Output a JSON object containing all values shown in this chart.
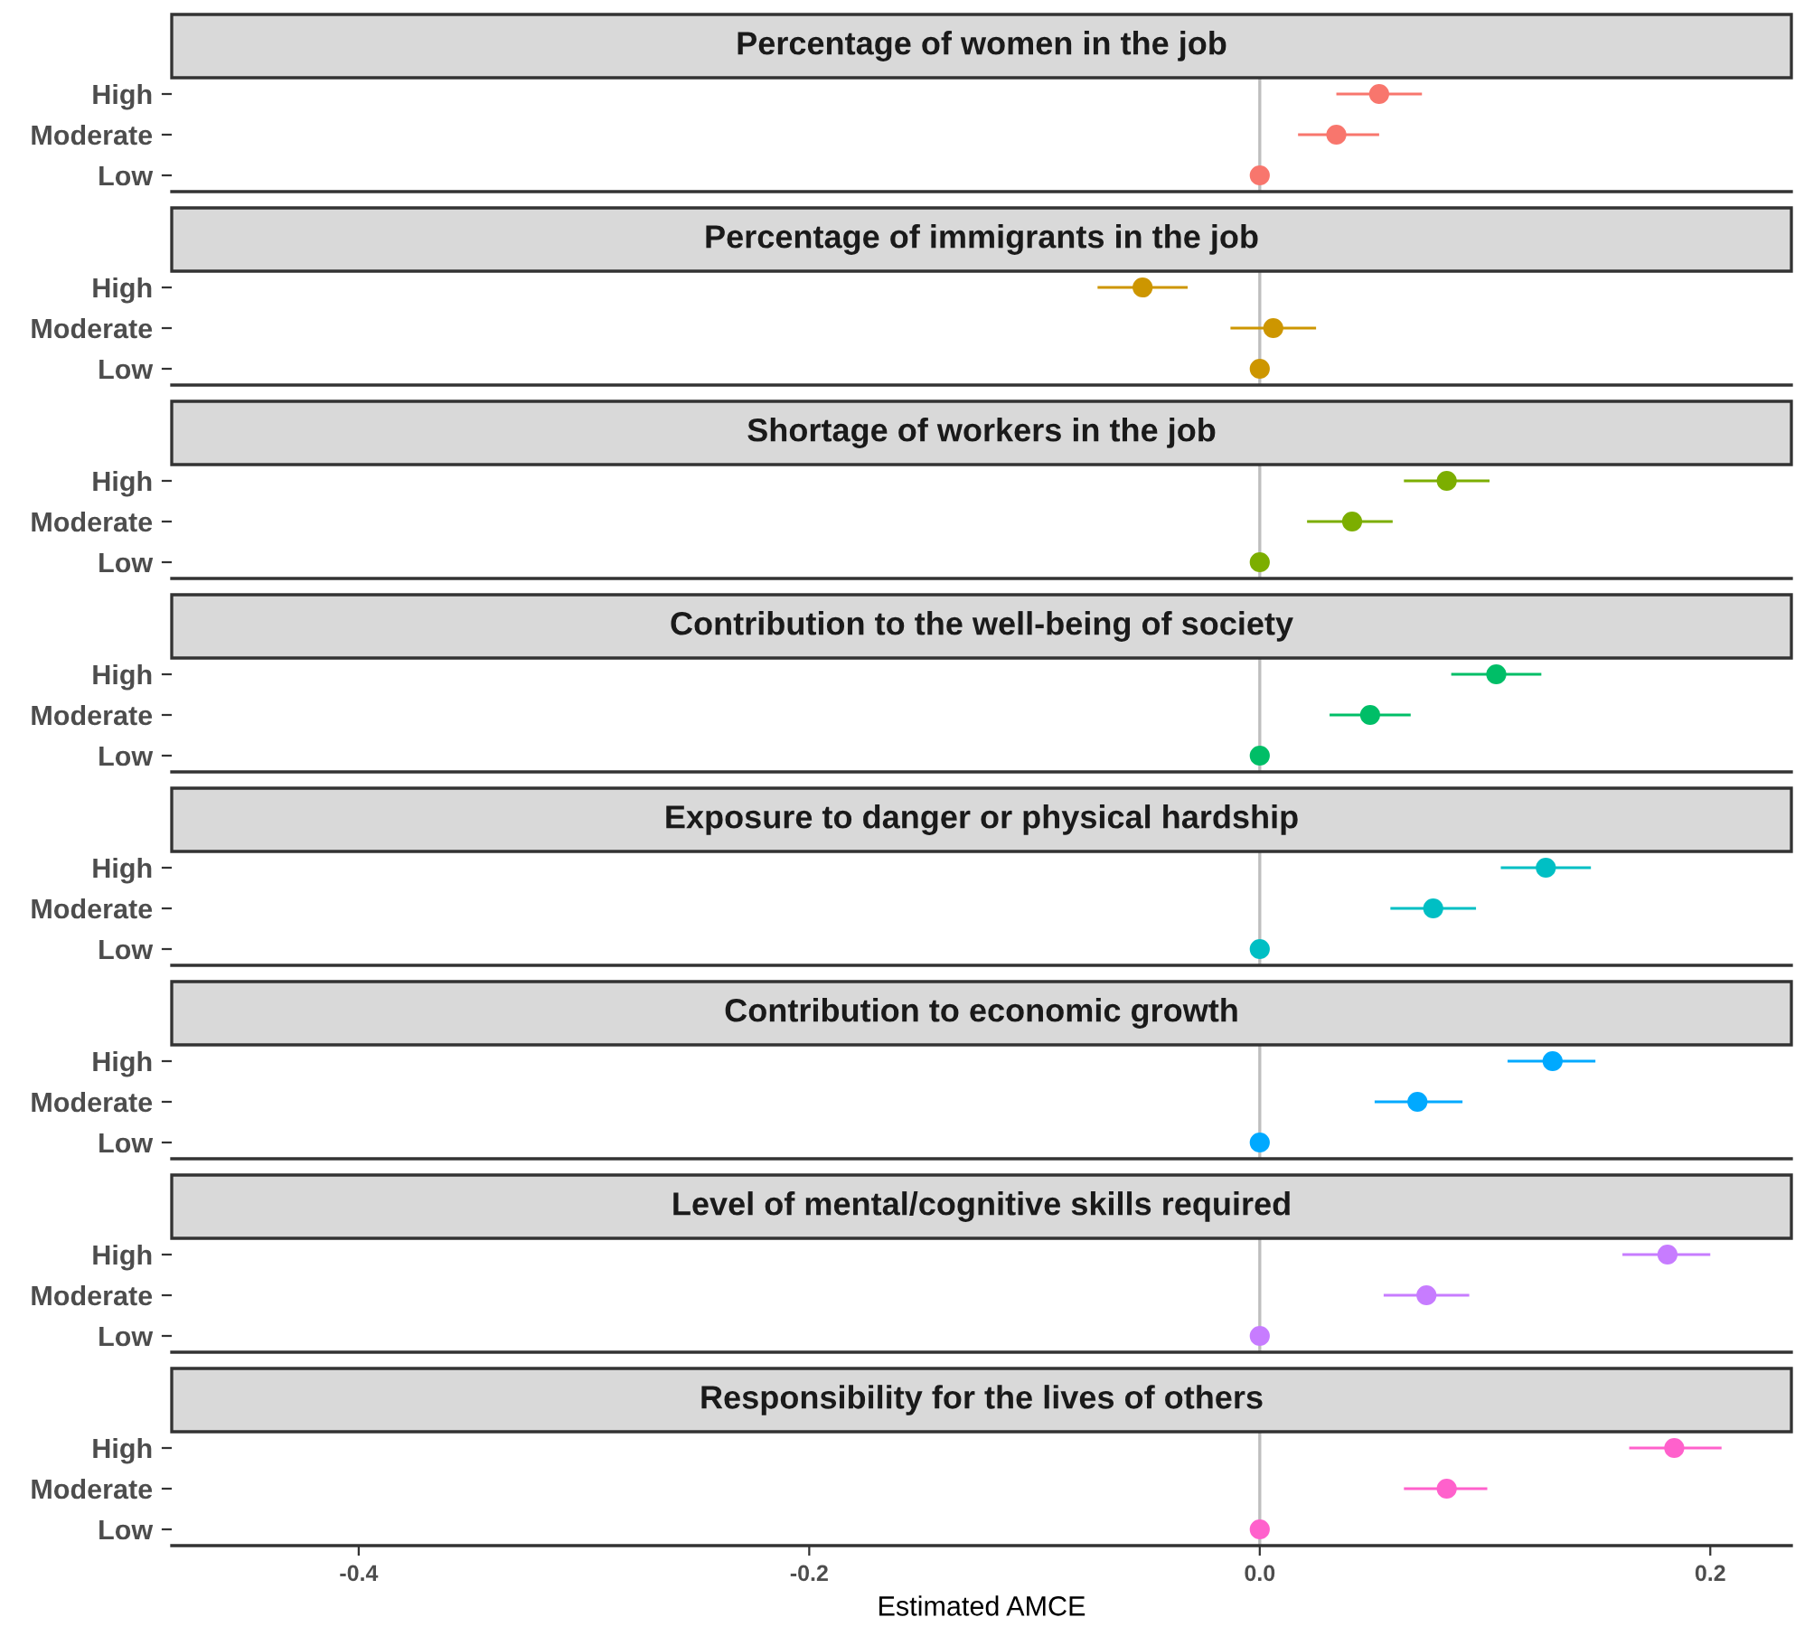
{
  "chart_data": [
    {
      "type": "scatter",
      "orientation": "horizontal",
      "title": "Percentage of women in the job",
      "categories": [
        "High",
        "Moderate",
        "Low"
      ],
      "values": [
        0.053,
        0.034,
        0
      ],
      "errors": [
        [
          0.034,
          0.072
        ],
        [
          0.017,
          0.053
        ],
        null
      ],
      "color": "#f8766d",
      "xlim": [
        -0.483,
        0.236
      ],
      "tick_labels": "y",
      "marker": "circle",
      "grid": false,
      "ref_lines": [
        {
          "axis": "x",
          "value": 0,
          "color": "#bebebe"
        }
      ]
    },
    {
      "type": "scatter",
      "orientation": "horizontal",
      "title": "Percentage of immigrants in the job",
      "categories": [
        "High",
        "Moderate",
        "Low"
      ],
      "values": [
        -0.052,
        0.006,
        0
      ],
      "errors": [
        [
          -0.072,
          -0.032
        ],
        [
          -0.013,
          0.025
        ],
        null
      ],
      "color": "#cd9600",
      "xlim": [
        -0.483,
        0.236
      ],
      "tick_labels": "y",
      "marker": "circle",
      "grid": false,
      "ref_lines": [
        {
          "axis": "x",
          "value": 0,
          "color": "#bebebe"
        }
      ]
    },
    {
      "type": "scatter",
      "orientation": "horizontal",
      "title": "Shortage of workers in the job",
      "categories": [
        "High",
        "Moderate",
        "Low"
      ],
      "values": [
        0.083,
        0.041,
        0
      ],
      "errors": [
        [
          0.064,
          0.102
        ],
        [
          0.021,
          0.059
        ],
        null
      ],
      "color": "#7cae00",
      "xlim": [
        -0.483,
        0.236
      ],
      "tick_labels": "y",
      "marker": "circle",
      "grid": false,
      "ref_lines": [
        {
          "axis": "x",
          "value": 0,
          "color": "#bebebe"
        }
      ]
    },
    {
      "type": "scatter",
      "orientation": "horizontal",
      "title": "Contribution to the well-being of society",
      "categories": [
        "High",
        "Moderate",
        "Low"
      ],
      "values": [
        0.105,
        0.049,
        0
      ],
      "errors": [
        [
          0.085,
          0.125
        ],
        [
          0.031,
          0.067
        ],
        null
      ],
      "color": "#00be67",
      "xlim": [
        -0.483,
        0.236
      ],
      "tick_labels": "y",
      "marker": "circle",
      "grid": false,
      "ref_lines": [
        {
          "axis": "x",
          "value": 0,
          "color": "#bebebe"
        }
      ]
    },
    {
      "type": "scatter",
      "orientation": "horizontal",
      "title": "Exposure to danger or physical hardship",
      "categories": [
        "High",
        "Moderate",
        "Low"
      ],
      "values": [
        0.127,
        0.077,
        0
      ],
      "errors": [
        [
          0.107,
          0.147
        ],
        [
          0.058,
          0.096
        ],
        null
      ],
      "color": "#00bfc4",
      "xlim": [
        -0.483,
        0.236
      ],
      "tick_labels": "y",
      "marker": "circle",
      "grid": false,
      "ref_lines": [
        {
          "axis": "x",
          "value": 0,
          "color": "#bebebe"
        }
      ]
    },
    {
      "type": "scatter",
      "orientation": "horizontal",
      "title": "Contribution to economic growth",
      "categories": [
        "High",
        "Moderate",
        "Low"
      ],
      "values": [
        0.13,
        0.07,
        0
      ],
      "errors": [
        [
          0.11,
          0.149
        ],
        [
          0.051,
          0.09
        ],
        null
      ],
      "color": "#00a9ff",
      "xlim": [
        -0.483,
        0.236
      ],
      "tick_labels": "y",
      "marker": "circle",
      "grid": false,
      "ref_lines": [
        {
          "axis": "x",
          "value": 0,
          "color": "#bebebe"
        }
      ]
    },
    {
      "type": "scatter",
      "orientation": "horizontal",
      "title": "Level of mental/cognitive skills required",
      "categories": [
        "High",
        "Moderate",
        "Low"
      ],
      "values": [
        0.181,
        0.074,
        0
      ],
      "errors": [
        [
          0.161,
          0.2
        ],
        [
          0.055,
          0.093
        ],
        null
      ],
      "color": "#c77cff",
      "xlim": [
        -0.483,
        0.236
      ],
      "tick_labels": "y",
      "marker": "circle",
      "grid": false,
      "ref_lines": [
        {
          "axis": "x",
          "value": 0,
          "color": "#bebebe"
        }
      ]
    },
    {
      "type": "scatter",
      "orientation": "horizontal",
      "title": "Responsibility for the lives of others",
      "xlabel": "Estimated AMCE",
      "categories": [
        "High",
        "Moderate",
        "Low"
      ],
      "values": [
        0.184,
        0.083,
        0
      ],
      "errors": [
        [
          0.164,
          0.205
        ],
        [
          0.064,
          0.101
        ],
        null
      ],
      "color": "#ff61cc",
      "xlim": [
        -0.483,
        0.236
      ],
      "xticks": [
        -0.4,
        -0.2,
        {
          "value": 0,
          "label": "0.0"
        },
        0.2
      ],
      "marker": "circle",
      "grid": false,
      "ref_lines": [
        {
          "axis": "x",
          "value": 0,
          "color": "#bebebe"
        }
      ]
    }
  ]
}
